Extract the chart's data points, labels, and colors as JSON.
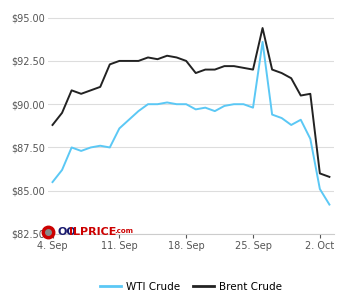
{
  "wti_x": [
    0,
    1,
    2,
    3,
    4,
    5,
    6,
    7,
    8,
    9,
    10,
    11,
    12,
    13,
    14,
    15,
    16,
    17,
    18,
    19,
    20,
    21,
    22,
    23,
    24,
    25,
    26,
    27,
    28,
    29
  ],
  "wti_y": [
    85.5,
    86.2,
    87.5,
    87.3,
    87.5,
    87.6,
    87.5,
    88.6,
    89.1,
    89.6,
    90.0,
    90.0,
    90.1,
    90.0,
    90.0,
    89.7,
    89.8,
    89.6,
    89.9,
    90.0,
    90.0,
    89.8,
    93.6,
    89.4,
    89.2,
    88.8,
    89.1,
    88.0,
    85.1,
    84.2
  ],
  "brent_x": [
    0,
    1,
    2,
    3,
    4,
    5,
    6,
    7,
    8,
    9,
    10,
    11,
    12,
    13,
    14,
    15,
    16,
    17,
    18,
    19,
    20,
    21,
    22,
    23,
    24,
    25,
    26,
    27,
    28,
    29
  ],
  "brent_y": [
    88.8,
    89.5,
    90.8,
    90.6,
    90.8,
    91.0,
    92.3,
    92.5,
    92.5,
    92.5,
    92.7,
    92.6,
    92.8,
    92.7,
    92.5,
    91.8,
    92.0,
    92.0,
    92.2,
    92.2,
    92.1,
    92.0,
    94.4,
    92.0,
    91.8,
    91.5,
    90.5,
    90.6,
    86.0,
    85.8
  ],
  "wti_color": "#5bc8f5",
  "brent_color": "#222222",
  "ylim": [
    82.5,
    95.5
  ],
  "yticks": [
    82.5,
    85.0,
    87.5,
    90.0,
    92.5,
    95.0
  ],
  "xtick_positions": [
    0,
    7,
    14,
    21,
    28
  ],
  "xtick_labels": [
    "4. Sep",
    "11. Sep",
    "18. Sep",
    "25. Sep",
    "2. Oct"
  ],
  "grid_color": "#dddddd",
  "bg_color": "#ffffff",
  "legend_wti": "WTI Crude",
  "legend_brent": "Brent Crude",
  "line_width": 1.4,
  "logo_oo_color": "#1a1a6e",
  "logo_oil_color": "#cc0000",
  "logo_price_color": "#cc0000"
}
